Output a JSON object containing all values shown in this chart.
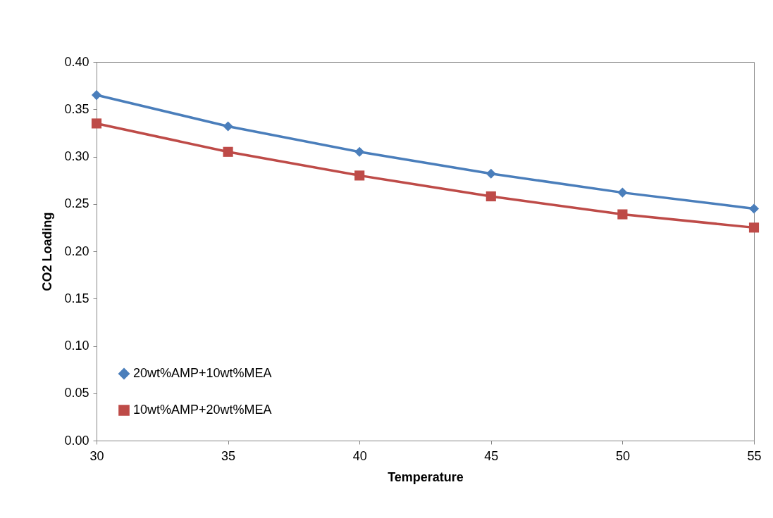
{
  "chart_data": {
    "type": "line",
    "xlabel": "Temperature",
    "ylabel": "CO2 Loading",
    "x": [
      30,
      35,
      40,
      45,
      50,
      55
    ],
    "series": [
      {
        "name": "20wt%AMP+10wt%MEA",
        "color": "#4a7ebb",
        "marker": "diamond",
        "values": [
          0.365,
          0.332,
          0.305,
          0.282,
          0.262,
          0.245
        ]
      },
      {
        "name": "10wt%AMP+20wt%MEA",
        "color": "#be4b48",
        "marker": "square",
        "values": [
          0.335,
          0.305,
          0.28,
          0.258,
          0.239,
          0.225
        ]
      }
    ],
    "xlim": [
      30,
      55
    ],
    "xticks": [
      30,
      35,
      40,
      45,
      50,
      55
    ],
    "ylim": [
      0,
      0.4
    ],
    "yticks": [
      {
        "value": 0,
        "label": "0.00"
      },
      {
        "value": 0.05,
        "label": "0.05"
      },
      {
        "value": 0.1,
        "label": "0.10"
      },
      {
        "value": 0.15,
        "label": "0.15"
      },
      {
        "value": 0.2,
        "label": "0.20"
      },
      {
        "value": 0.25,
        "label": "0.25"
      },
      {
        "value": 0.3,
        "label": "0.30"
      },
      {
        "value": 0.35,
        "label": "0.35"
      },
      {
        "value": 0.4,
        "label": "0.40"
      }
    ],
    "grid": false,
    "legend": "bottom left",
    "line_style": "solid"
  }
}
